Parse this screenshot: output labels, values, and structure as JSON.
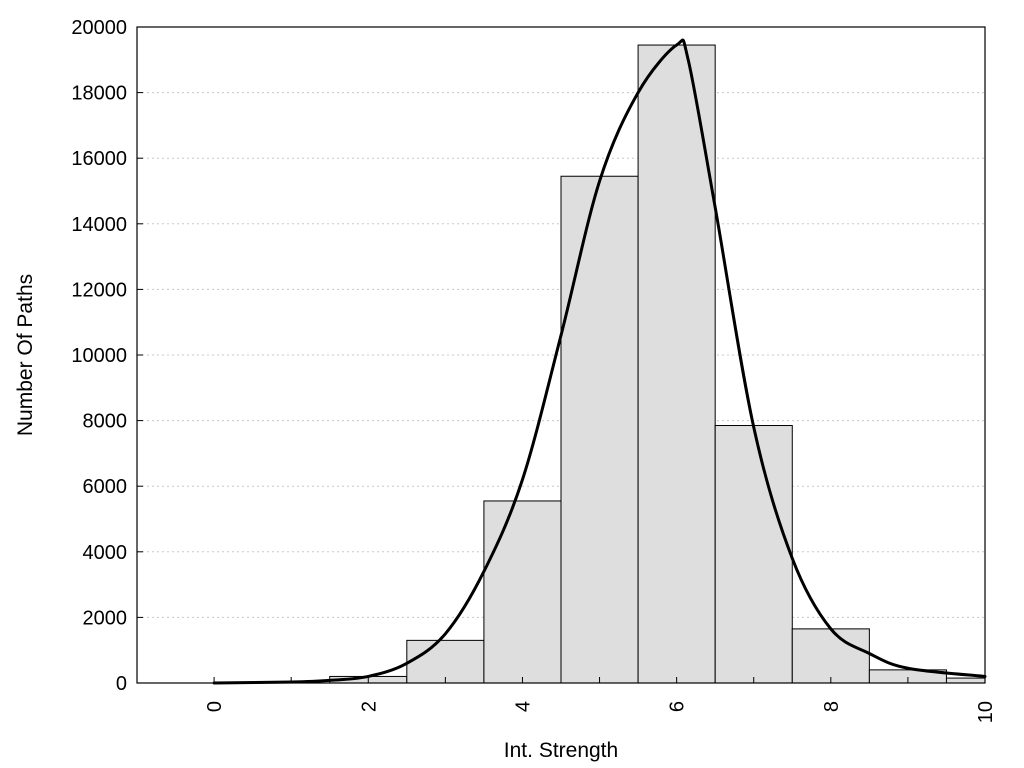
{
  "chart_data": {
    "type": "bar",
    "xlabel": "Int. Strength",
    "ylabel": "Number Of Paths",
    "xlim": [
      -1,
      10
    ],
    "ylim": [
      0,
      20000
    ],
    "x_ticks": [
      "0",
      "2",
      "4",
      "6",
      "8",
      "10"
    ],
    "y_ticks": [
      "0",
      "2000",
      "4000",
      "6000",
      "8000",
      "10000",
      "12000",
      "14000",
      "16000",
      "18000",
      "20000"
    ],
    "grid": "horizontal dotted",
    "bar_width": 1,
    "bars": [
      {
        "x": 0,
        "value": 0
      },
      {
        "x": 1,
        "value": 0
      },
      {
        "x": 2,
        "value": 200
      },
      {
        "x": 3,
        "value": 1300
      },
      {
        "x": 4,
        "value": 5550
      },
      {
        "x": 5,
        "value": 15450
      },
      {
        "x": 6,
        "value": 19450
      },
      {
        "x": 7,
        "value": 7850
      },
      {
        "x": 8,
        "value": 1650
      },
      {
        "x": 9,
        "value": 400
      },
      {
        "x": 10,
        "value": 150
      }
    ],
    "curve": {
      "x": [
        0,
        1,
        1.5,
        2,
        2.5,
        3,
        3.5,
        4,
        4.5,
        5,
        5.5,
        6,
        6.15,
        6.5,
        7,
        7.5,
        8,
        8.5,
        9,
        10
      ],
      "y": [
        0,
        30,
        80,
        200,
        600,
        1500,
        3400,
        6200,
        10600,
        15300,
        18000,
        19450,
        19000,
        14500,
        7800,
        3800,
        1650,
        900,
        450,
        200
      ]
    },
    "colors": {
      "bar_fill": "#dedede",
      "bar_stroke": "#000000",
      "curve": "#000000",
      "grid": "#c8c8c8"
    }
  }
}
